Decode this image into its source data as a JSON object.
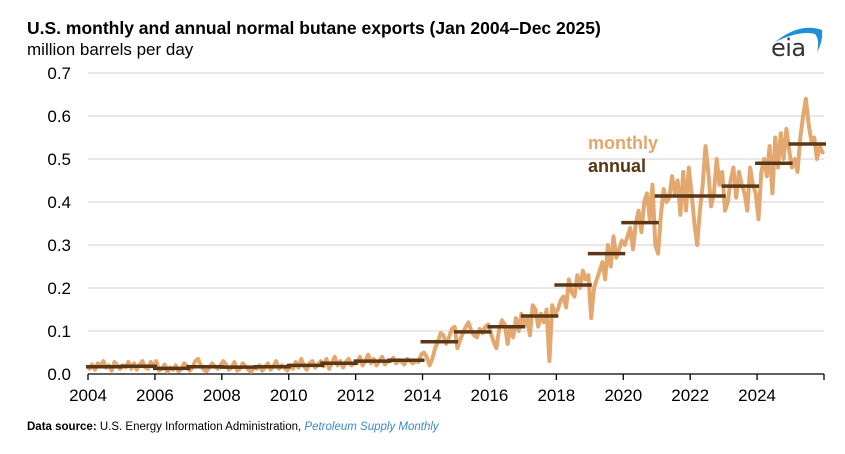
{
  "chart_data": {
    "type": "line",
    "title": "U.S. monthly and annual normal butane exports (Jan 2004–Dec 2025)",
    "ylabel": "million barrels per day",
    "xlabel": "",
    "ylim": [
      0,
      0.7
    ],
    "xlim": [
      2004,
      2026
    ],
    "y_ticks": [
      "0.0",
      "0.1",
      "0.2",
      "0.3",
      "0.4",
      "0.5",
      "0.6",
      "0.7"
    ],
    "x_ticks": [
      "2004",
      "2006",
      "2008",
      "2010",
      "2012",
      "2014",
      "2016",
      "2018",
      "2020",
      "2022",
      "2024"
    ],
    "grid": true,
    "legend": [
      "monthly",
      "annual"
    ],
    "legend_position": "upper-right inside plot",
    "colors": {
      "monthly": "#e2a870",
      "annual": "#5c3716",
      "grid": "#d9d9d9",
      "axis": "#000000"
    },
    "series": [
      {
        "name": "monthly",
        "start": "2004-01",
        "values": [
          0.012,
          0.022,
          0.01,
          0.025,
          0.018,
          0.03,
          0.015,
          0.02,
          0.008,
          0.028,
          0.02,
          0.012,
          0.02,
          0.015,
          0.028,
          0.012,
          0.025,
          0.01,
          0.022,
          0.03,
          0.015,
          0.012,
          0.028,
          0.018,
          0.03,
          0.008,
          0.012,
          0.022,
          0.005,
          0.015,
          0.01,
          0.02,
          0.006,
          0.012,
          0.025,
          0.018,
          0.008,
          0.015,
          0.03,
          0.035,
          0.02,
          0.01,
          0.006,
          0.015,
          0.025,
          0.018,
          0.012,
          0.02,
          0.03,
          0.022,
          0.01,
          0.015,
          0.028,
          0.008,
          0.012,
          0.025,
          0.018,
          0.01,
          0.005,
          0.015,
          0.012,
          0.02,
          0.008,
          0.015,
          0.025,
          0.01,
          0.018,
          0.03,
          0.012,
          0.02,
          0.015,
          0.008,
          0.02,
          0.012,
          0.028,
          0.015,
          0.035,
          0.018,
          0.01,
          0.025,
          0.03,
          0.015,
          0.022,
          0.03,
          0.018,
          0.035,
          0.012,
          0.025,
          0.04,
          0.02,
          0.03,
          0.015,
          0.028,
          0.035,
          0.02,
          0.025,
          0.025,
          0.04,
          0.02,
          0.03,
          0.045,
          0.025,
          0.035,
          0.02,
          0.03,
          0.04,
          0.022,
          0.03,
          0.03,
          0.038,
          0.025,
          0.032,
          0.028,
          0.022,
          0.035,
          0.03,
          0.025,
          0.03,
          0.028,
          0.045,
          0.05,
          0.04,
          0.02,
          0.035,
          0.06,
          0.075,
          0.095,
          0.09,
          0.07,
          0.085,
          0.105,
          0.11,
          0.06,
          0.08,
          0.095,
          0.11,
          0.12,
          0.1,
          0.09,
          0.085,
          0.105,
          0.095,
          0.11,
          0.115,
          0.095,
          0.075,
          0.06,
          0.105,
          0.125,
          0.115,
          0.07,
          0.11,
          0.085,
          0.13,
          0.1,
          0.14,
          0.11,
          0.13,
          0.09,
          0.16,
          0.15,
          0.11,
          0.14,
          0.12,
          0.15,
          0.03,
          0.16,
          0.14,
          0.15,
          0.17,
          0.18,
          0.155,
          0.22,
          0.19,
          0.18,
          0.23,
          0.2,
          0.24,
          0.22,
          0.23,
          0.13,
          0.2,
          0.22,
          0.24,
          0.26,
          0.22,
          0.3,
          0.25,
          0.32,
          0.27,
          0.29,
          0.31,
          0.3,
          0.32,
          0.34,
          0.29,
          0.35,
          0.38,
          0.33,
          0.4,
          0.42,
          0.36,
          0.44,
          0.3,
          0.28,
          0.37,
          0.43,
          0.4,
          0.41,
          0.46,
          0.42,
          0.45,
          0.37,
          0.47,
          0.38,
          0.48,
          0.42,
          0.35,
          0.3,
          0.38,
          0.44,
          0.53,
          0.47,
          0.39,
          0.42,
          0.5,
          0.44,
          0.47,
          0.38,
          0.4,
          0.45,
          0.48,
          0.41,
          0.47,
          0.44,
          0.42,
          0.38,
          0.48,
          0.44,
          0.42,
          0.36,
          0.47,
          0.5,
          0.46,
          0.53,
          0.42,
          0.55,
          0.48,
          0.56,
          0.5,
          0.57,
          0.52,
          0.48,
          0.5,
          0.47,
          0.55,
          0.6,
          0.64,
          0.58,
          0.54,
          0.55,
          0.5,
          0.53,
          0.515
        ]
      },
      {
        "name": "annual",
        "years": [
          2004,
          2005,
          2006,
          2007,
          2008,
          2009,
          2010,
          2011,
          2012,
          2013,
          2014,
          2015,
          2016,
          2017,
          2018,
          2019,
          2020,
          2021,
          2022,
          2023,
          2024,
          2025
        ],
        "values": [
          0.017,
          0.018,
          0.013,
          0.017,
          0.016,
          0.017,
          0.02,
          0.025,
          0.03,
          0.032,
          0.075,
          0.098,
          0.11,
          0.135,
          0.207,
          0.28,
          0.352,
          0.414,
          0.414,
          0.437,
          0.49,
          0.535
        ]
      }
    ]
  },
  "header": {
    "title": "U.S. monthly and annual normal butane exports (Jan 2004–Dec 2025)",
    "subtitle": "million barrels per day",
    "logo_text": "eia"
  },
  "legend": {
    "monthly": "monthly",
    "annual": "annual"
  },
  "footer": {
    "source_label": "Data source:",
    "source_text": "U.S. Energy Information Administration,",
    "publication": "Petroleum Supply Monthly"
  }
}
